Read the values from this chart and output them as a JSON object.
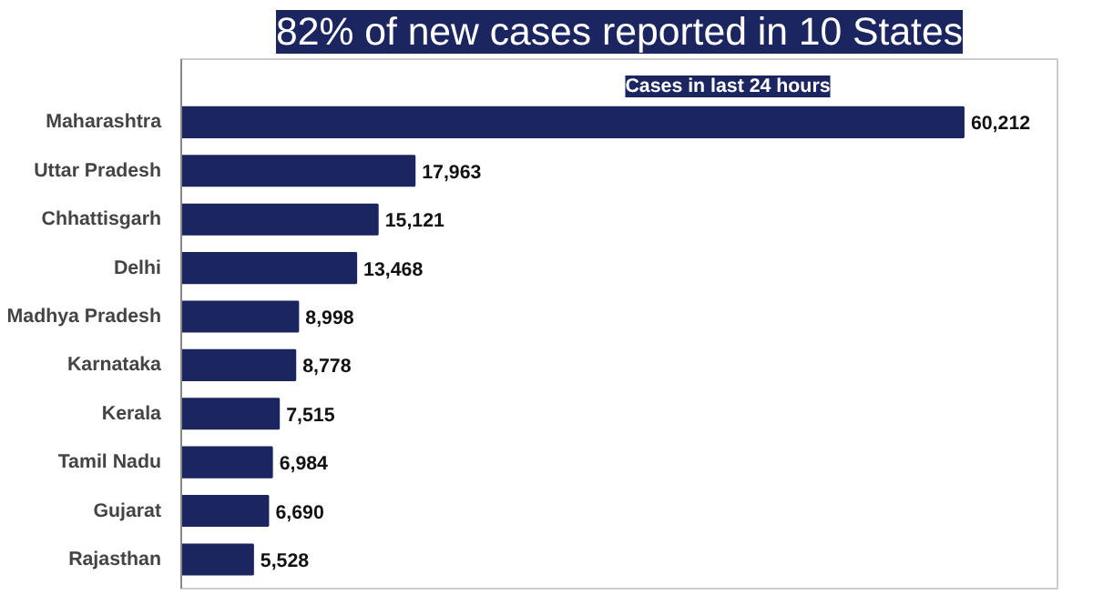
{
  "chart_data": {
    "type": "bar",
    "orientation": "horizontal",
    "title": "82% of new cases reported in 10 States",
    "subtitle": "Cases in last 24 hours",
    "categories": [
      "Maharashtra",
      "Uttar Pradesh",
      "Chhattisgarh",
      "Delhi",
      "Madhya Pradesh",
      "Karnataka",
      "Kerala",
      "Tamil Nadu",
      "Gujarat",
      "Rajasthan"
    ],
    "values": [
      60212,
      17963,
      15121,
      13468,
      8998,
      8778,
      7515,
      6984,
      6690,
      5528
    ],
    "value_labels": [
      "60,212",
      "17,963",
      "15,121",
      "13,468",
      "8,998",
      "8,778",
      "7,515",
      "6,984",
      "6,690",
      "5,528"
    ],
    "color": "#1b2560",
    "tick_labels": "y",
    "grid": false
  }
}
